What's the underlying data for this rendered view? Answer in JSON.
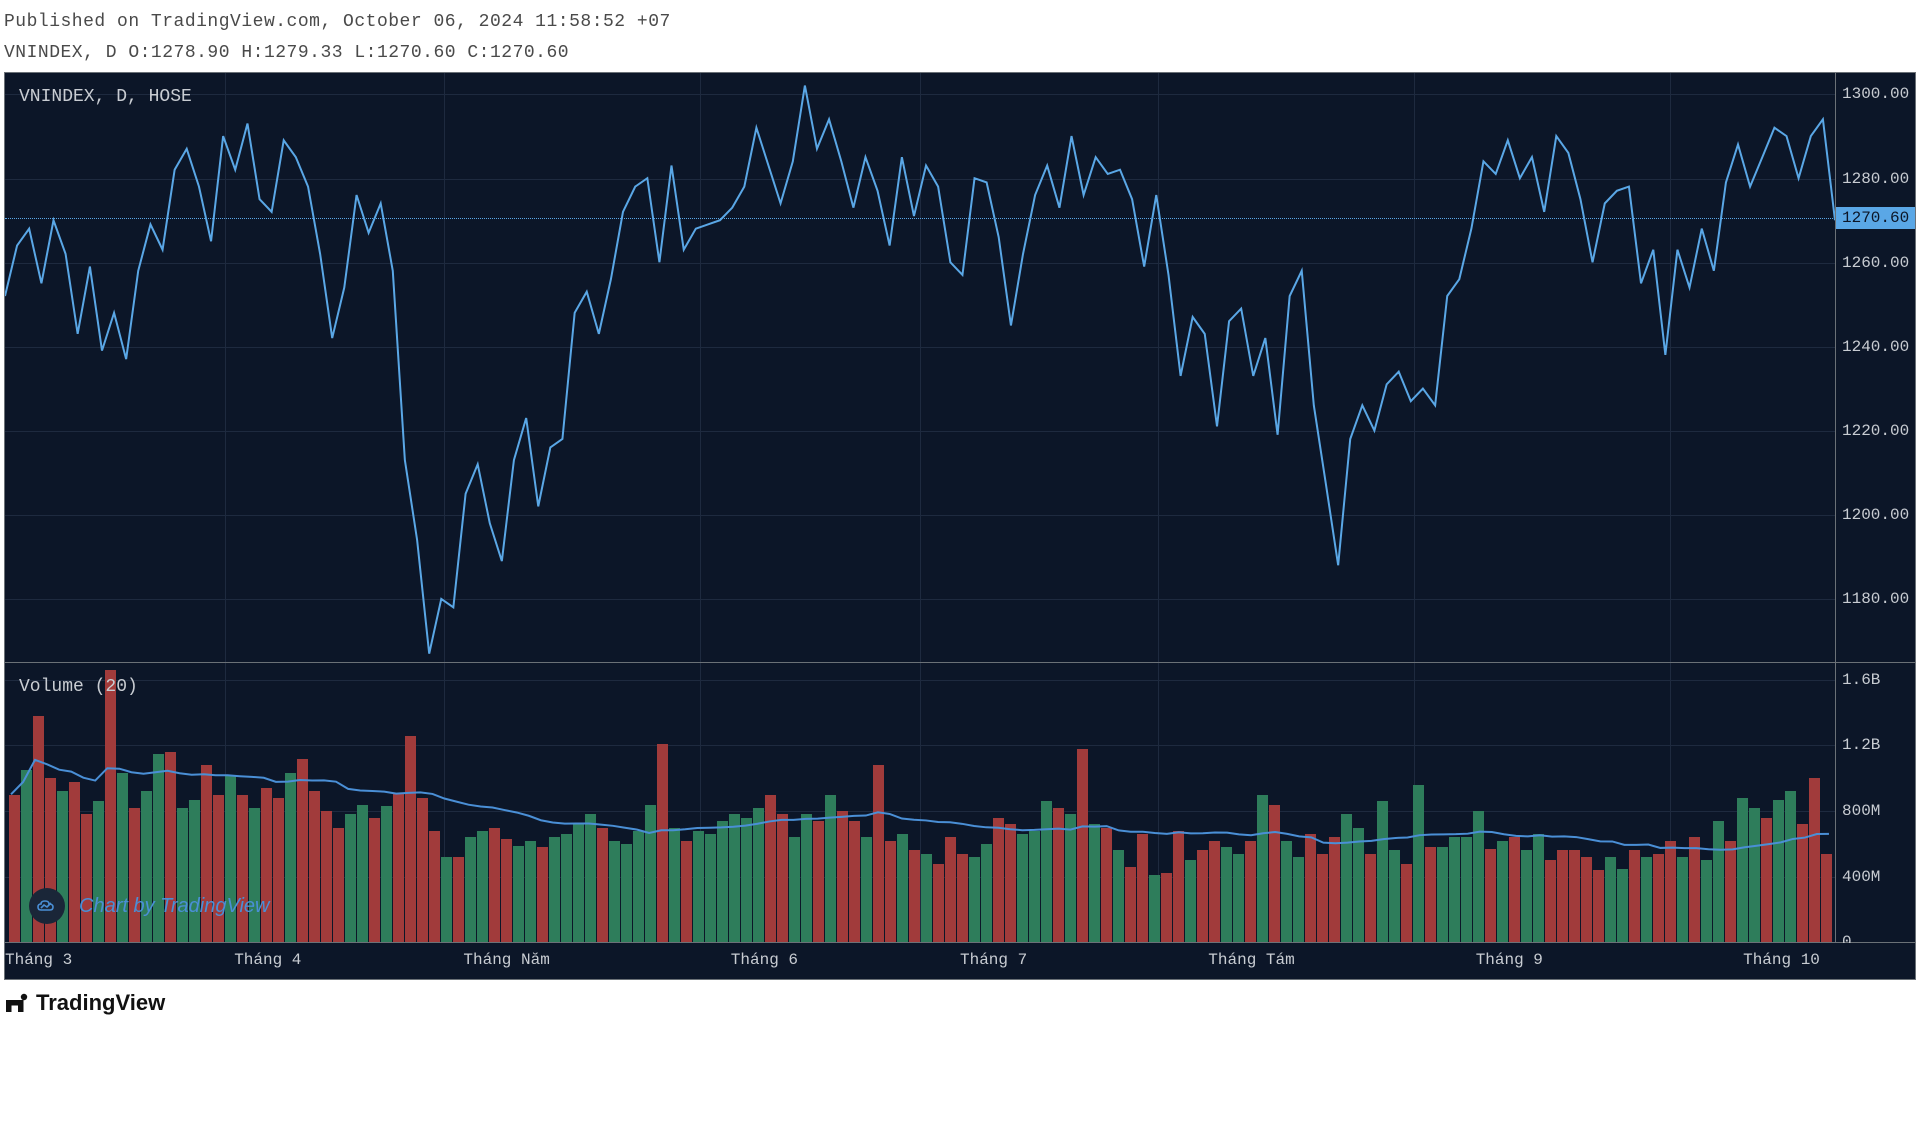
{
  "header": {
    "published_line": "Published on TradingView.com, October 06, 2024 11:58:52 +07",
    "ohlc_line": "VNINDEX, D O:1278.90 H:1279.33 L:1270.60 C:1270.60"
  },
  "price_pane": {
    "label": "VNINDEX, D, HOSE",
    "type": "line",
    "ylim": [
      1165,
      1305
    ],
    "yticks": [
      1180,
      1200,
      1220,
      1240,
      1260,
      1280,
      1300
    ],
    "ref_value": 1270.6,
    "ref_badge": "1270.60",
    "line_color": "#5aa7e6",
    "line_width": 2,
    "grid_color": "#1e2a3f",
    "background_color": "#0c1628",
    "values": [
      1252,
      1264,
      1268,
      1255,
      1270,
      1262,
      1243,
      1259,
      1239,
      1248,
      1237,
      1258,
      1269,
      1263,
      1282,
      1287,
      1278,
      1265,
      1290,
      1282,
      1293,
      1275,
      1272,
      1289,
      1285,
      1278,
      1262,
      1242,
      1254,
      1276,
      1267,
      1274,
      1258,
      1213,
      1194,
      1167,
      1180,
      1178,
      1205,
      1212,
      1198,
      1189,
      1213,
      1223,
      1202,
      1216,
      1218,
      1248,
      1253,
      1243,
      1256,
      1272,
      1278,
      1280,
      1260,
      1283,
      1263,
      1268,
      1269,
      1270,
      1273,
      1278,
      1292,
      1283,
      1274,
      1284,
      1302,
      1287,
      1294,
      1284,
      1273,
      1285,
      1277,
      1264,
      1285,
      1271,
      1283,
      1278,
      1260,
      1257,
      1280,
      1279,
      1266,
      1245,
      1262,
      1276,
      1283,
      1273,
      1290,
      1276,
      1285,
      1281,
      1282,
      1275,
      1259,
      1276,
      1257,
      1233,
      1247,
      1243,
      1221,
      1246,
      1249,
      1233,
      1242,
      1219,
      1252,
      1258,
      1226,
      1207,
      1188,
      1218,
      1226,
      1220,
      1231,
      1234,
      1227,
      1230,
      1226,
      1252,
      1256,
      1268,
      1284,
      1281,
      1289,
      1280,
      1285,
      1272,
      1290,
      1286,
      1275,
      1260,
      1274,
      1277,
      1278,
      1255,
      1263,
      1238,
      1263,
      1254,
      1268,
      1258,
      1279,
      1288,
      1278,
      1285,
      1292,
      1290,
      1280,
      1290,
      1294,
      1270
    ]
  },
  "volume_pane": {
    "label": "Volume (20)",
    "type": "bar",
    "ylim": [
      0,
      1700000000
    ],
    "yticks": [
      {
        "v": 0,
        "label": "0"
      },
      {
        "v": 400000000,
        "label": "400M"
      },
      {
        "v": 800000000,
        "label": "800M"
      },
      {
        "v": 1200000000,
        "label": "1.2B"
      },
      {
        "v": 1600000000,
        "label": "1.6B"
      }
    ],
    "up_color": "#2e7d5b",
    "down_color": "#a13b3b",
    "ma_color": "#4a8fd6",
    "ma_width": 2,
    "background_color": "#0c1628",
    "bars": [
      {
        "v": 900000000,
        "d": "dn"
      },
      {
        "v": 1050000000,
        "d": "up"
      },
      {
        "v": 1380000000,
        "d": "dn"
      },
      {
        "v": 1000000000,
        "d": "dn"
      },
      {
        "v": 920000000,
        "d": "up"
      },
      {
        "v": 980000000,
        "d": "dn"
      },
      {
        "v": 780000000,
        "d": "dn"
      },
      {
        "v": 860000000,
        "d": "up"
      },
      {
        "v": 1660000000,
        "d": "dn"
      },
      {
        "v": 1030000000,
        "d": "up"
      },
      {
        "v": 820000000,
        "d": "dn"
      },
      {
        "v": 920000000,
        "d": "up"
      },
      {
        "v": 1150000000,
        "d": "up"
      },
      {
        "v": 1160000000,
        "d": "dn"
      },
      {
        "v": 820000000,
        "d": "up"
      },
      {
        "v": 870000000,
        "d": "up"
      },
      {
        "v": 1080000000,
        "d": "dn"
      },
      {
        "v": 900000000,
        "d": "dn"
      },
      {
        "v": 1020000000,
        "d": "up"
      },
      {
        "v": 900000000,
        "d": "dn"
      },
      {
        "v": 820000000,
        "d": "up"
      },
      {
        "v": 940000000,
        "d": "dn"
      },
      {
        "v": 880000000,
        "d": "dn"
      },
      {
        "v": 1030000000,
        "d": "up"
      },
      {
        "v": 1120000000,
        "d": "dn"
      },
      {
        "v": 920000000,
        "d": "dn"
      },
      {
        "v": 800000000,
        "d": "dn"
      },
      {
        "v": 700000000,
        "d": "dn"
      },
      {
        "v": 780000000,
        "d": "up"
      },
      {
        "v": 840000000,
        "d": "up"
      },
      {
        "v": 760000000,
        "d": "dn"
      },
      {
        "v": 830000000,
        "d": "up"
      },
      {
        "v": 910000000,
        "d": "dn"
      },
      {
        "v": 1260000000,
        "d": "dn"
      },
      {
        "v": 880000000,
        "d": "dn"
      },
      {
        "v": 680000000,
        "d": "dn"
      },
      {
        "v": 520000000,
        "d": "up"
      },
      {
        "v": 520000000,
        "d": "dn"
      },
      {
        "v": 640000000,
        "d": "up"
      },
      {
        "v": 680000000,
        "d": "up"
      },
      {
        "v": 700000000,
        "d": "dn"
      },
      {
        "v": 630000000,
        "d": "dn"
      },
      {
        "v": 590000000,
        "d": "up"
      },
      {
        "v": 620000000,
        "d": "up"
      },
      {
        "v": 580000000,
        "d": "dn"
      },
      {
        "v": 640000000,
        "d": "up"
      },
      {
        "v": 660000000,
        "d": "up"
      },
      {
        "v": 720000000,
        "d": "up"
      },
      {
        "v": 780000000,
        "d": "up"
      },
      {
        "v": 700000000,
        "d": "dn"
      },
      {
        "v": 620000000,
        "d": "up"
      },
      {
        "v": 600000000,
        "d": "up"
      },
      {
        "v": 680000000,
        "d": "up"
      },
      {
        "v": 840000000,
        "d": "up"
      },
      {
        "v": 1210000000,
        "d": "dn"
      },
      {
        "v": 700000000,
        "d": "up"
      },
      {
        "v": 620000000,
        "d": "dn"
      },
      {
        "v": 680000000,
        "d": "up"
      },
      {
        "v": 660000000,
        "d": "up"
      },
      {
        "v": 740000000,
        "d": "up"
      },
      {
        "v": 780000000,
        "d": "up"
      },
      {
        "v": 760000000,
        "d": "up"
      },
      {
        "v": 820000000,
        "d": "up"
      },
      {
        "v": 900000000,
        "d": "dn"
      },
      {
        "v": 780000000,
        "d": "dn"
      },
      {
        "v": 640000000,
        "d": "up"
      },
      {
        "v": 780000000,
        "d": "up"
      },
      {
        "v": 740000000,
        "d": "dn"
      },
      {
        "v": 900000000,
        "d": "up"
      },
      {
        "v": 800000000,
        "d": "dn"
      },
      {
        "v": 740000000,
        "d": "dn"
      },
      {
        "v": 640000000,
        "d": "up"
      },
      {
        "v": 1080000000,
        "d": "dn"
      },
      {
        "v": 620000000,
        "d": "dn"
      },
      {
        "v": 660000000,
        "d": "up"
      },
      {
        "v": 560000000,
        "d": "dn"
      },
      {
        "v": 540000000,
        "d": "up"
      },
      {
        "v": 480000000,
        "d": "dn"
      },
      {
        "v": 640000000,
        "d": "dn"
      },
      {
        "v": 540000000,
        "d": "dn"
      },
      {
        "v": 520000000,
        "d": "up"
      },
      {
        "v": 600000000,
        "d": "up"
      },
      {
        "v": 760000000,
        "d": "dn"
      },
      {
        "v": 720000000,
        "d": "dn"
      },
      {
        "v": 660000000,
        "d": "up"
      },
      {
        "v": 680000000,
        "d": "up"
      },
      {
        "v": 860000000,
        "d": "up"
      },
      {
        "v": 820000000,
        "d": "dn"
      },
      {
        "v": 780000000,
        "d": "up"
      },
      {
        "v": 1180000000,
        "d": "dn"
      },
      {
        "v": 720000000,
        "d": "up"
      },
      {
        "v": 700000000,
        "d": "dn"
      },
      {
        "v": 560000000,
        "d": "up"
      },
      {
        "v": 460000000,
        "d": "dn"
      },
      {
        "v": 660000000,
        "d": "dn"
      },
      {
        "v": 410000000,
        "d": "up"
      },
      {
        "v": 420000000,
        "d": "dn"
      },
      {
        "v": 680000000,
        "d": "dn"
      },
      {
        "v": 500000000,
        "d": "up"
      },
      {
        "v": 560000000,
        "d": "dn"
      },
      {
        "v": 620000000,
        "d": "dn"
      },
      {
        "v": 580000000,
        "d": "up"
      },
      {
        "v": 540000000,
        "d": "up"
      },
      {
        "v": 620000000,
        "d": "dn"
      },
      {
        "v": 900000000,
        "d": "up"
      },
      {
        "v": 840000000,
        "d": "dn"
      },
      {
        "v": 620000000,
        "d": "up"
      },
      {
        "v": 520000000,
        "d": "up"
      },
      {
        "v": 660000000,
        "d": "dn"
      },
      {
        "v": 540000000,
        "d": "dn"
      },
      {
        "v": 640000000,
        "d": "dn"
      },
      {
        "v": 780000000,
        "d": "up"
      },
      {
        "v": 700000000,
        "d": "up"
      },
      {
        "v": 540000000,
        "d": "dn"
      },
      {
        "v": 860000000,
        "d": "up"
      },
      {
        "v": 560000000,
        "d": "up"
      },
      {
        "v": 480000000,
        "d": "dn"
      },
      {
        "v": 960000000,
        "d": "up"
      },
      {
        "v": 580000000,
        "d": "dn"
      },
      {
        "v": 580000000,
        "d": "up"
      },
      {
        "v": 640000000,
        "d": "up"
      },
      {
        "v": 640000000,
        "d": "up"
      },
      {
        "v": 800000000,
        "d": "up"
      },
      {
        "v": 570000000,
        "d": "dn"
      },
      {
        "v": 620000000,
        "d": "up"
      },
      {
        "v": 640000000,
        "d": "dn"
      },
      {
        "v": 560000000,
        "d": "up"
      },
      {
        "v": 660000000,
        "d": "up"
      },
      {
        "v": 500000000,
        "d": "dn"
      },
      {
        "v": 560000000,
        "d": "dn"
      },
      {
        "v": 560000000,
        "d": "dn"
      },
      {
        "v": 520000000,
        "d": "dn"
      },
      {
        "v": 440000000,
        "d": "dn"
      },
      {
        "v": 520000000,
        "d": "up"
      },
      {
        "v": 450000000,
        "d": "up"
      },
      {
        "v": 560000000,
        "d": "dn"
      },
      {
        "v": 520000000,
        "d": "up"
      },
      {
        "v": 540000000,
        "d": "dn"
      },
      {
        "v": 620000000,
        "d": "dn"
      },
      {
        "v": 520000000,
        "d": "up"
      },
      {
        "v": 640000000,
        "d": "dn"
      },
      {
        "v": 500000000,
        "d": "up"
      },
      {
        "v": 740000000,
        "d": "up"
      },
      {
        "v": 620000000,
        "d": "dn"
      },
      {
        "v": 880000000,
        "d": "up"
      },
      {
        "v": 820000000,
        "d": "up"
      },
      {
        "v": 760000000,
        "d": "dn"
      },
      {
        "v": 870000000,
        "d": "up"
      },
      {
        "v": 920000000,
        "d": "up"
      },
      {
        "v": 720000000,
        "d": "dn"
      },
      {
        "v": 1000000000,
        "d": "dn"
      },
      {
        "v": 540000000,
        "d": "dn"
      }
    ]
  },
  "xaxis": {
    "labels": [
      "Tháng 3",
      "Tháng 4",
      "Tháng Năm",
      "Tháng 6",
      "Tháng 7",
      "Tháng Tám",
      "Tháng 9",
      "Tháng 10"
    ],
    "positions_pct": [
      0,
      12,
      24,
      38,
      50,
      63,
      77,
      91
    ]
  },
  "watermark": {
    "text": "Chart by TradingView",
    "icon_color": "#4a8fd6"
  },
  "footer": {
    "brand": "TradingView"
  }
}
